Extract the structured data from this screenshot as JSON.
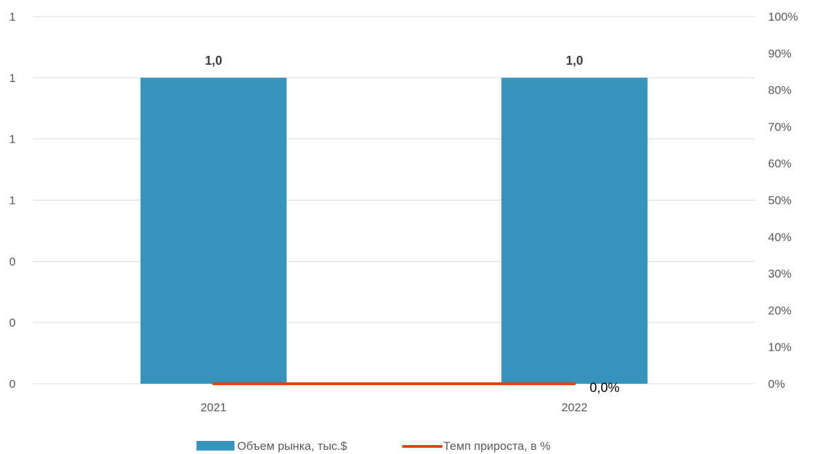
{
  "chart_data": {
    "type": "bar",
    "categories": [
      "2021",
      "2022"
    ],
    "series": [
      {
        "name": "Объем рынка, тыс.$",
        "kind": "bar",
        "axis": "left",
        "color": "#3694bb",
        "values": [
          1.0,
          1.0
        ],
        "data_labels": [
          "1,0",
          "1,0"
        ]
      },
      {
        "name": "Темп прироста, в %",
        "kind": "line",
        "axis": "right",
        "color": "#f03c0a",
        "values": [
          0.0,
          0.0
        ],
        "data_labels": [
          "",
          "0,0%"
        ]
      }
    ],
    "left_axis": {
      "ylim": [
        0,
        1.2
      ],
      "ticks": [
        0,
        0.2,
        0.4,
        0.6,
        0.8,
        1.0,
        1.2
      ],
      "tick_labels": [
        "0",
        "0",
        "0",
        "1",
        "1",
        "1",
        "1"
      ]
    },
    "right_axis": {
      "ylim": [
        0,
        100
      ],
      "ticks": [
        0,
        10,
        20,
        30,
        40,
        50,
        60,
        70,
        80,
        90,
        100
      ],
      "tick_labels": [
        "0%",
        "10%",
        "20%",
        "30%",
        "40%",
        "50%",
        "60%",
        "70%",
        "80%",
        "90%",
        "100%"
      ]
    },
    "grid": true,
    "legend_position": "bottom",
    "colors": {
      "grid": "#d9d9d9",
      "tick_text": "#595959"
    }
  }
}
